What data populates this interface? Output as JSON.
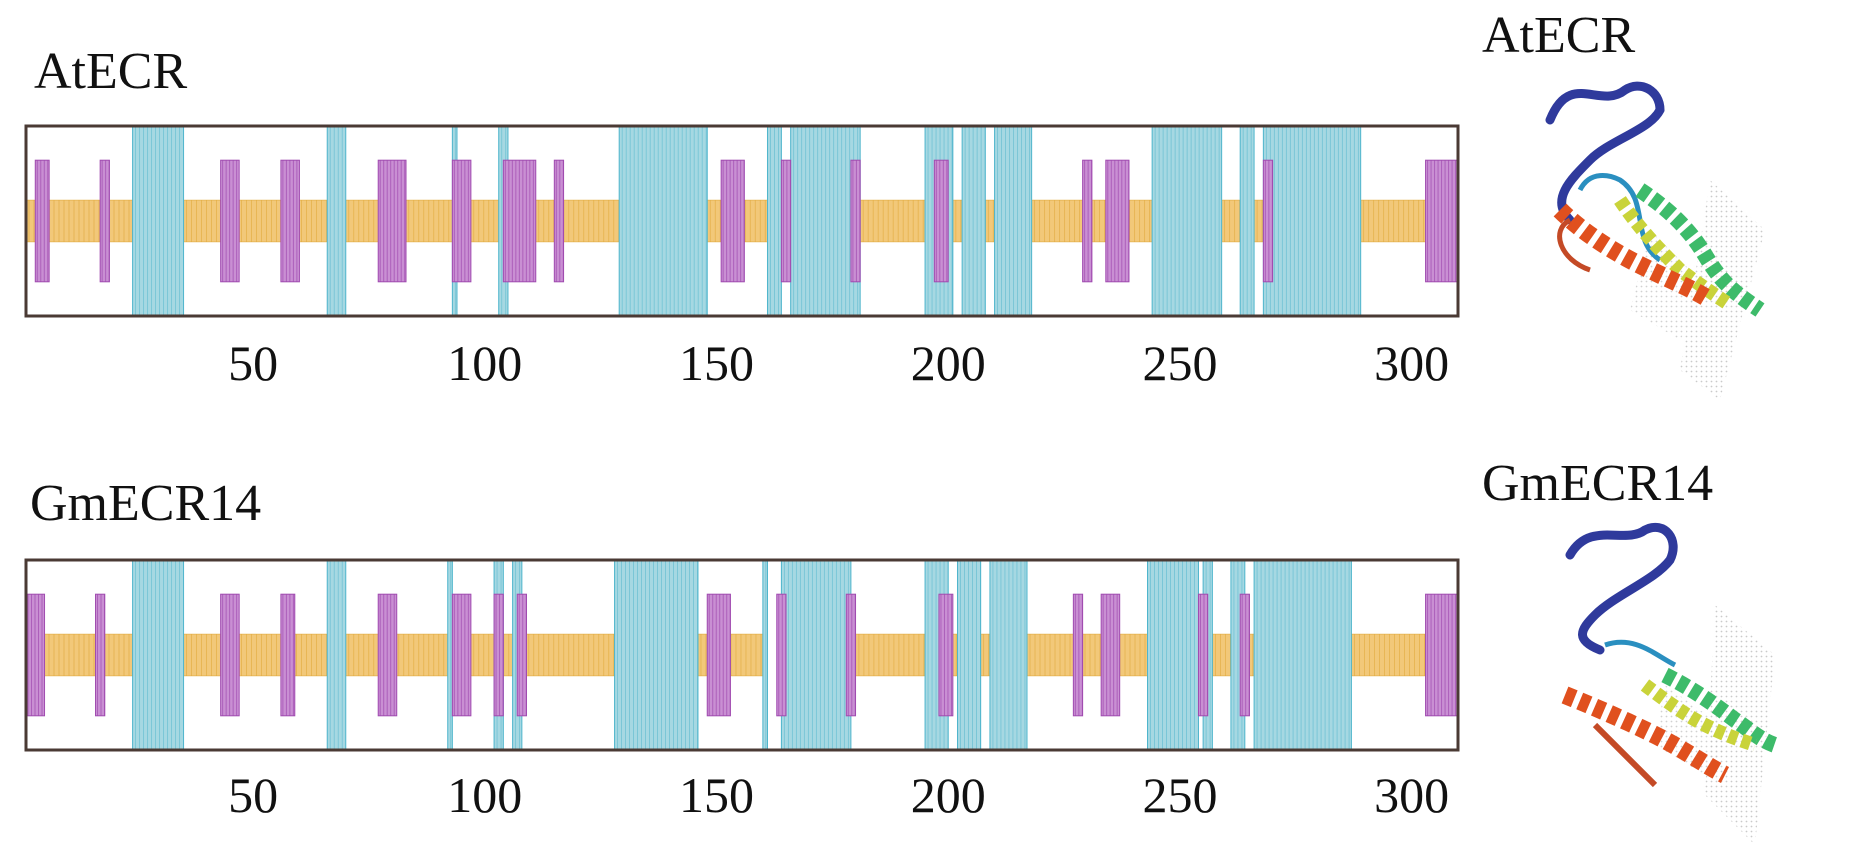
{
  "colors": {
    "helix": "#9aa5c5",
    "helix_fill": "#a6d8e2",
    "helix_line": "#4fb5cc",
    "strand": "#a04bb0",
    "strand_fill": "#c98fd3",
    "coil": "#e0a83a",
    "coil_fill": "#f2c879",
    "frame": "#4a3a34"
  },
  "chart_data": [
    {
      "type": "track",
      "title": "AtECR",
      "xlim": [
        1,
        310
      ],
      "xticks": [
        50,
        100,
        150,
        200,
        250,
        300
      ],
      "legend": "none",
      "helix": [
        [
          24,
          35
        ],
        [
          66,
          70
        ],
        [
          93,
          94
        ],
        [
          103,
          105
        ],
        [
          129,
          148
        ],
        [
          161,
          164
        ],
        [
          166,
          181
        ],
        [
          195,
          201
        ],
        [
          203,
          208
        ],
        [
          210,
          218
        ],
        [
          244,
          259
        ],
        [
          263,
          266
        ],
        [
          268,
          289
        ]
      ],
      "strand": [
        [
          3,
          6
        ],
        [
          17,
          19
        ],
        [
          43,
          47
        ],
        [
          56,
          60
        ],
        [
          77,
          83
        ],
        [
          93,
          97
        ],
        [
          104,
          111
        ],
        [
          115,
          117
        ],
        [
          151,
          156
        ],
        [
          164,
          166
        ],
        [
          179,
          181
        ],
        [
          197,
          200
        ],
        [
          229,
          231
        ],
        [
          234,
          239
        ],
        [
          268,
          270
        ],
        [
          303,
          310
        ]
      ],
      "coil": [
        [
          1,
          24
        ],
        [
          35,
          66
        ],
        [
          70,
          129
        ],
        [
          148,
          161
        ],
        [
          181,
          195
        ],
        [
          201,
          203
        ],
        [
          208,
          210
        ],
        [
          218,
          244
        ],
        [
          259,
          263
        ],
        [
          266,
          268
        ],
        [
          289,
          310
        ]
      ]
    },
    {
      "type": "track",
      "title": "GmECR14",
      "xlim": [
        1,
        310
      ],
      "xticks": [
        50,
        100,
        150,
        200,
        250,
        300
      ],
      "legend": "none",
      "helix": [
        [
          24,
          35
        ],
        [
          66,
          70
        ],
        [
          92,
          93
        ],
        [
          102,
          104
        ],
        [
          106,
          108
        ],
        [
          128,
          146
        ],
        [
          160,
          161
        ],
        [
          164,
          179
        ],
        [
          195,
          200
        ],
        [
          202,
          207
        ],
        [
          209,
          217
        ],
        [
          243,
          254
        ],
        [
          255,
          257
        ],
        [
          261,
          264
        ],
        [
          266,
          287
        ]
      ],
      "strand": [
        [
          1,
          5
        ],
        [
          16,
          18
        ],
        [
          43,
          47
        ],
        [
          56,
          59
        ],
        [
          77,
          81
        ],
        [
          93,
          97
        ],
        [
          102,
          104
        ],
        [
          107,
          109
        ],
        [
          148,
          153
        ],
        [
          163,
          165
        ],
        [
          178,
          180
        ],
        [
          198,
          201
        ],
        [
          227,
          229
        ],
        [
          233,
          237
        ],
        [
          254,
          256
        ],
        [
          263,
          265
        ],
        [
          303,
          310
        ]
      ],
      "coil": [
        [
          1,
          24
        ],
        [
          35,
          66
        ],
        [
          70,
          128
        ],
        [
          146,
          160
        ],
        [
          179,
          195
        ],
        [
          200,
          202
        ],
        [
          207,
          209
        ],
        [
          217,
          243
        ],
        [
          257,
          261
        ],
        [
          264,
          266
        ],
        [
          287,
          310
        ]
      ]
    }
  ],
  "structures": [
    {
      "label": "AtECR",
      "icon": "protein-ribbon-structure"
    },
    {
      "label": "GmECR14",
      "icon": "protein-ribbon-structure"
    }
  ]
}
